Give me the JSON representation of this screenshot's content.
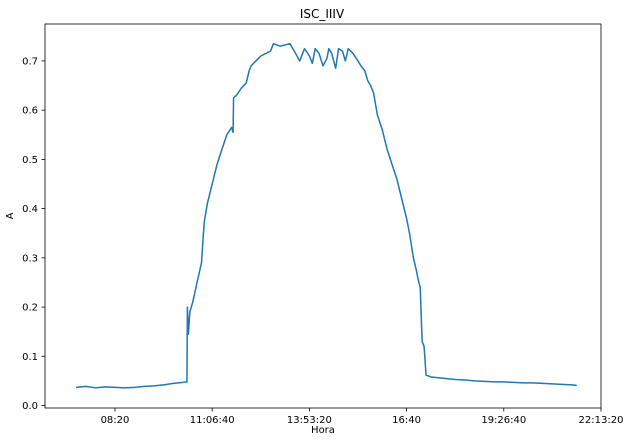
{
  "chart_data": {
    "type": "line",
    "title": "ISC_IIIV",
    "xlabel": "Hora",
    "ylabel": "A",
    "x_unit": "time of day (seconds since 00:00)",
    "xlim": [
      22800,
      80000
    ],
    "ylim": [
      -0.005,
      0.775
    ],
    "x_ticks": [
      {
        "value": 30000,
        "label": "08:20"
      },
      {
        "value": 40000,
        "label": "11:06:40"
      },
      {
        "value": 50000,
        "label": "13:53:20"
      },
      {
        "value": 60000,
        "label": "16:40"
      },
      {
        "value": 70000,
        "label": "19:26:40"
      },
      {
        "value": 80000,
        "label": "22:13:20"
      }
    ],
    "y_ticks": [
      {
        "value": 0.0,
        "label": "0.0"
      },
      {
        "value": 0.1,
        "label": "0.1"
      },
      {
        "value": 0.2,
        "label": "0.2"
      },
      {
        "value": 0.3,
        "label": "0.3"
      },
      {
        "value": 0.4,
        "label": "0.4"
      },
      {
        "value": 0.5,
        "label": "0.5"
      },
      {
        "value": 0.6,
        "label": "0.6"
      },
      {
        "value": 0.7,
        "label": "0.7"
      }
    ],
    "grid": false,
    "legend": "none",
    "series": [
      {
        "color": "#1f77b4",
        "points": [
          [
            26000,
            0.037
          ],
          [
            27000,
            0.039
          ],
          [
            28000,
            0.036
          ],
          [
            29000,
            0.038
          ],
          [
            30000,
            0.037
          ],
          [
            31000,
            0.036
          ],
          [
            32000,
            0.037
          ],
          [
            33000,
            0.039
          ],
          [
            34000,
            0.04
          ],
          [
            35000,
            0.042
          ],
          [
            36000,
            0.045
          ],
          [
            37000,
            0.047
          ],
          [
            37400,
            0.048
          ],
          [
            37450,
            0.2
          ],
          [
            37550,
            0.145
          ],
          [
            37700,
            0.19
          ],
          [
            38000,
            0.21
          ],
          [
            38500,
            0.255
          ],
          [
            38900,
            0.29
          ],
          [
            39100,
            0.35
          ],
          [
            39200,
            0.375
          ],
          [
            39500,
            0.41
          ],
          [
            40000,
            0.45
          ],
          [
            40500,
            0.49
          ],
          [
            41000,
            0.52
          ],
          [
            41500,
            0.55
          ],
          [
            42000,
            0.565
          ],
          [
            42150,
            0.555
          ],
          [
            42200,
            0.625
          ],
          [
            42500,
            0.63
          ],
          [
            43000,
            0.645
          ],
          [
            43500,
            0.655
          ],
          [
            43800,
            0.68
          ],
          [
            44000,
            0.69
          ],
          [
            44500,
            0.7
          ],
          [
            45000,
            0.71
          ],
          [
            45500,
            0.715
          ],
          [
            46000,
            0.72
          ],
          [
            46300,
            0.735
          ],
          [
            47000,
            0.73
          ],
          [
            48000,
            0.735
          ],
          [
            48500,
            0.718
          ],
          [
            49000,
            0.7
          ],
          [
            49500,
            0.725
          ],
          [
            50000,
            0.71
          ],
          [
            50300,
            0.695
          ],
          [
            50600,
            0.725
          ],
          [
            51000,
            0.715
          ],
          [
            51400,
            0.69
          ],
          [
            51800,
            0.705
          ],
          [
            52000,
            0.725
          ],
          [
            52300,
            0.715
          ],
          [
            52700,
            0.685
          ],
          [
            53000,
            0.725
          ],
          [
            53400,
            0.72
          ],
          [
            53700,
            0.7
          ],
          [
            54000,
            0.725
          ],
          [
            54500,
            0.715
          ],
          [
            55000,
            0.7
          ],
          [
            55300,
            0.69
          ],
          [
            55700,
            0.68
          ],
          [
            56000,
            0.66
          ],
          [
            56300,
            0.65
          ],
          [
            56600,
            0.635
          ],
          [
            57000,
            0.59
          ],
          [
            57500,
            0.56
          ],
          [
            58000,
            0.52
          ],
          [
            58500,
            0.49
          ],
          [
            59000,
            0.46
          ],
          [
            59500,
            0.42
          ],
          [
            60000,
            0.38
          ],
          [
            60300,
            0.35
          ],
          [
            60700,
            0.3
          ],
          [
            61000,
            0.275
          ],
          [
            61200,
            0.255
          ],
          [
            61400,
            0.24
          ],
          [
            61600,
            0.13
          ],
          [
            61800,
            0.12
          ],
          [
            62000,
            0.062
          ],
          [
            62500,
            0.058
          ],
          [
            63000,
            0.057
          ],
          [
            64000,
            0.055
          ],
          [
            65000,
            0.053
          ],
          [
            66000,
            0.052
          ],
          [
            67000,
            0.05
          ],
          [
            68000,
            0.049
          ],
          [
            69000,
            0.048
          ],
          [
            70000,
            0.048
          ],
          [
            71000,
            0.047
          ],
          [
            72000,
            0.046
          ],
          [
            73000,
            0.046
          ],
          [
            74000,
            0.045
          ],
          [
            75000,
            0.044
          ],
          [
            76000,
            0.043
          ],
          [
            77000,
            0.042
          ],
          [
            77500,
            0.041
          ]
        ]
      }
    ]
  }
}
